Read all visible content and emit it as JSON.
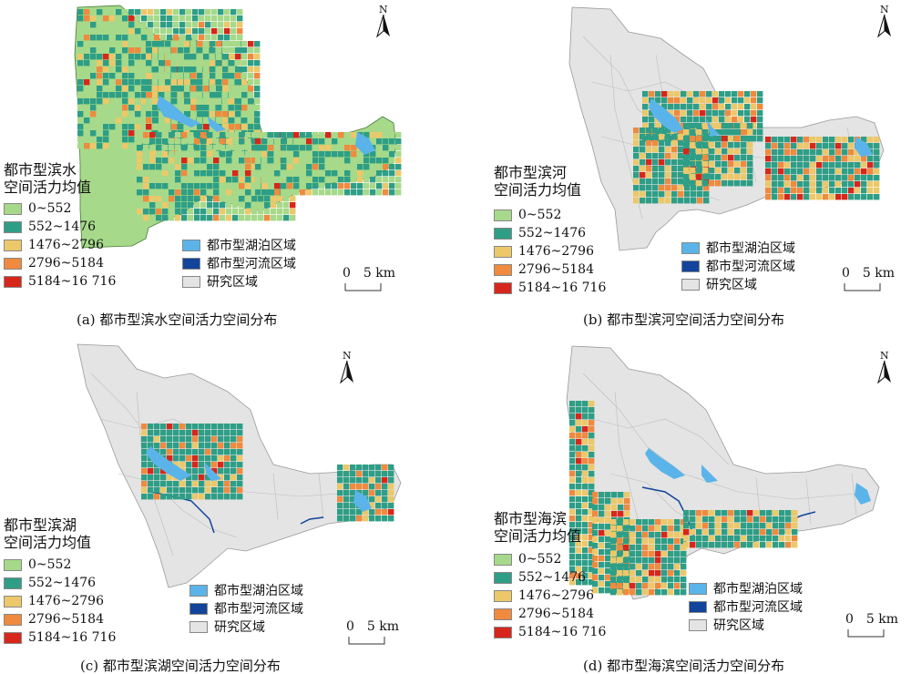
{
  "colors": {
    "class1": "#a6d98a",
    "class2": "#2e9e86",
    "class3": "#ecc86a",
    "class4": "#ef8a3e",
    "class5": "#d7261b",
    "lake": "#5ab4ea",
    "river": "#11449a",
    "study_area": "#e4e4e4"
  },
  "legend_classes": [
    "0~552",
    "552~1476",
    "1476~2796",
    "2796~5184",
    "5184~16 716"
  ],
  "extra_legend": [
    "都市型湖泊区域",
    "都市型河流区域",
    "研究区域"
  ],
  "scalebar": {
    "zero": "0",
    "label": "5 km"
  },
  "north_label": "N",
  "panels": [
    {
      "title": [
        "都市型滨水",
        "空间活力均值"
      ],
      "caption": "(a)  都市型滨水空间活力空间分布"
    },
    {
      "title": [
        "都市型滨河",
        "空间活力均值"
      ],
      "caption": "(b)  都市型滨河空间活力空间分布"
    },
    {
      "title": [
        "都市型滨湖",
        "空间活力均值"
      ],
      "caption": "(c)  都市型滨湖空间活力空间分布"
    },
    {
      "title": [
        "都市型海滨",
        "空间活力均值"
      ],
      "caption": "(d)  都市型海滨空间活力空间分布"
    }
  ]
}
